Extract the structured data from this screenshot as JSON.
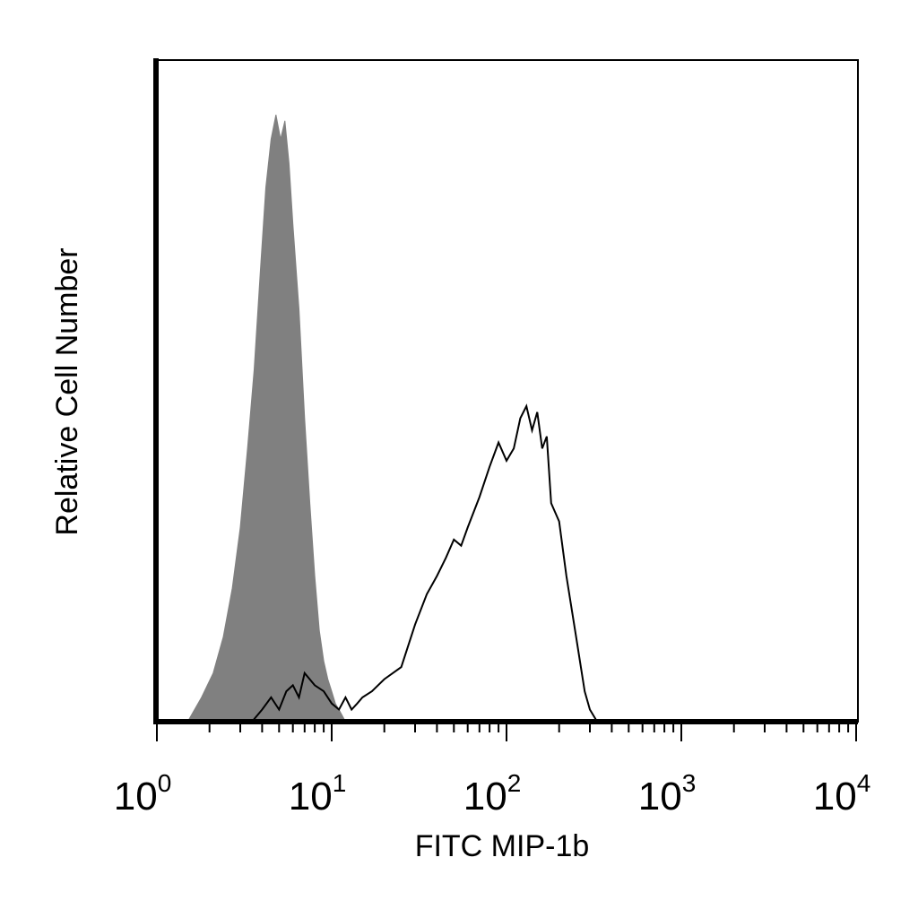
{
  "chart_data": {
    "type": "area",
    "title": "",
    "xlabel": "FITC MIP-1b",
    "ylabel": "Relative Cell Number",
    "x_scale": "log",
    "xlim": [
      1,
      10000
    ],
    "ylim": [
      0,
      1.0
    ],
    "x_ticks": [
      {
        "base": "10",
        "exp": "0",
        "value": 1
      },
      {
        "base": "10",
        "exp": "1",
        "value": 10
      },
      {
        "base": "10",
        "exp": "2",
        "value": 100
      },
      {
        "base": "10",
        "exp": "3",
        "value": 1000
      },
      {
        "base": "10",
        "exp": "4",
        "value": 10000
      }
    ],
    "grid": false,
    "legend": "none",
    "series": [
      {
        "style": "filled",
        "color": "#808080",
        "x": [
          1.5,
          1.8,
          2.1,
          2.4,
          2.7,
          3.0,
          3.3,
          3.6,
          3.9,
          4.2,
          4.5,
          4.8,
          5.1,
          5.4,
          5.7,
          6.0,
          6.5,
          7.0,
          7.5,
          8.0,
          8.5,
          9.0,
          9.5,
          10.0,
          10.5,
          11.0,
          12.0
        ],
        "y": [
          0.0,
          0.04,
          0.08,
          0.14,
          0.22,
          0.32,
          0.45,
          0.58,
          0.74,
          0.88,
          0.96,
          1.0,
          0.96,
          0.99,
          0.92,
          0.82,
          0.68,
          0.5,
          0.36,
          0.24,
          0.15,
          0.1,
          0.07,
          0.05,
          0.03,
          0.02,
          0.0
        ]
      },
      {
        "style": "outline",
        "color": "#000000",
        "x": [
          3.5,
          4.0,
          4.5,
          5.0,
          5.5,
          6.0,
          6.5,
          7.0,
          8.0,
          9.0,
          10.0,
          11.0,
          12.0,
          13.0,
          14.0,
          15.0,
          17.0,
          20.0,
          25.0,
          30.0,
          35.0,
          40.0,
          45.0,
          50.0,
          55.0,
          60.0,
          70.0,
          80.0,
          90.0,
          100.0,
          110.0,
          120.0,
          130.0,
          140.0,
          150.0,
          160.0,
          170.0,
          180.0,
          200.0,
          220.0,
          250.0,
          280.0,
          300.0,
          330.0
        ],
        "y": [
          0.0,
          0.02,
          0.04,
          0.02,
          0.05,
          0.06,
          0.04,
          0.08,
          0.06,
          0.05,
          0.03,
          0.02,
          0.04,
          0.02,
          0.03,
          0.04,
          0.05,
          0.07,
          0.09,
          0.16,
          0.21,
          0.24,
          0.27,
          0.3,
          0.29,
          0.32,
          0.37,
          0.42,
          0.46,
          0.43,
          0.45,
          0.5,
          0.52,
          0.48,
          0.51,
          0.45,
          0.47,
          0.36,
          0.33,
          0.24,
          0.14,
          0.05,
          0.02,
          0.0
        ]
      }
    ]
  }
}
